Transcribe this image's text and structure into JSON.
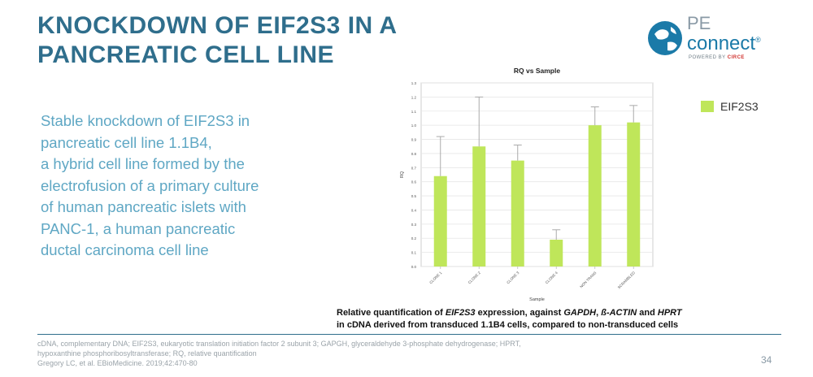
{
  "slide": {
    "title_line1": "KNOCKDOWN OF EIF2S3 IN A",
    "title_line2": "PANCREATIC CELL LINE",
    "body_lines": [
      "Stable knockdown of EIF2S3 in",
      "pancreatic cell line 1.1B4,",
      "a hybrid cell line formed by the",
      "electrofusion of a primary culture",
      "of human pancreatic islets with",
      "PANC-1, a human pancreatic",
      "ductal carcinoma cell line"
    ],
    "caption_line1_parts": [
      "Relative quantification of ",
      "EIF2S3",
      " expression, against ",
      "GAPDH",
      ", ",
      "ß-ACTIN",
      " and ",
      "HPRT"
    ],
    "caption_line2": "in cDNA derived from transduced 1.1B4 cells, compared to non-transduced cells",
    "footnote_lines": [
      "cDNA, complementary DNA; EIF2S3, eukaryotic translation initiation factor 2 subunit 3; GAPGH, glyceraldehyde 3-phosphate dehydrogenase; HPRT,",
      "hypoxanthine phosphoribosyltransferase; RQ, relative quantification",
      "Gregory LC, et al. EBioMedicine. 2019;42:470-80"
    ],
    "page_number": "34"
  },
  "logo": {
    "pe": "PE",
    "connect": "connect",
    "trademark": "®",
    "powered_by": "POWERED BY ",
    "powered_brand": "CIRCE"
  },
  "colors": {
    "title": "#2f6e8c",
    "body_text": "#5fa7c4",
    "bar": "#bfe65a",
    "logo_blue": "#1b7aa8"
  },
  "chart_data": {
    "type": "bar",
    "title": "RQ vs Sample",
    "xlabel": "Sample",
    "ylabel": "RQ",
    "categories": [
      "CLONE 1",
      "CLONE 2",
      "CLONE 3",
      "CLONE 4",
      "NON TRANS",
      "SCRAMBLED"
    ],
    "series": [
      {
        "name": "EIF2S3",
        "values": [
          0.64,
          0.85,
          0.75,
          0.19,
          1.0,
          1.02
        ],
        "error_upper": [
          0.92,
          1.2,
          0.86,
          0.26,
          1.13,
          1.14
        ]
      }
    ],
    "ylim": [
      0,
      1.3
    ],
    "yticks": [
      "0.0",
      "0.1",
      "0.2",
      "0.3",
      "0.4",
      "0.5",
      "0.6",
      "0.7",
      "0.8",
      "0.9",
      "1.0",
      "1.1",
      "1.2",
      "1.3"
    ],
    "grid": true,
    "legend_position": "right"
  }
}
